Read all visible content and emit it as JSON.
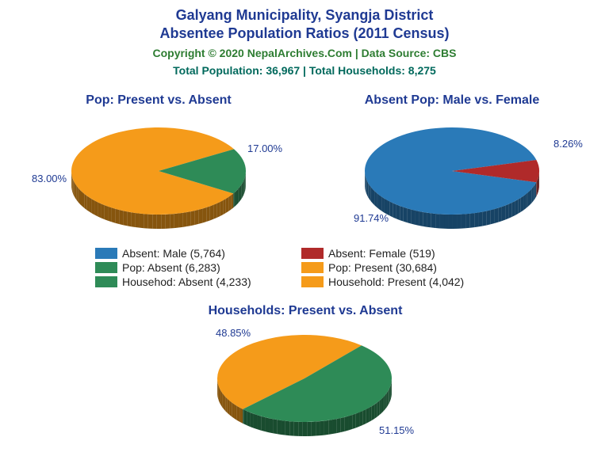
{
  "header": {
    "title_line1": "Galyang Municipality, Syangja District",
    "title_line2": "Absentee Population Ratios (2011 Census)",
    "copyright": "Copyright © 2020 NepalArchives.Com | Data Source: CBS",
    "totals": "Total Population: 36,967 | Total Households: 8,275"
  },
  "colors": {
    "title": "#1f3a93",
    "copyright": "#2e7d32",
    "totals": "#00695c",
    "label": "#1f3a93",
    "blue": "#2a7ab8",
    "blue_dark": "#0d2b57",
    "red": "#b02a2a",
    "red_dark": "#6e1515",
    "green": "#2e8b57",
    "green_dark": "#165934",
    "orange": "#f59b1a",
    "orange_dark": "#b86c0a"
  },
  "chart1": {
    "title": "Pop: Present vs. Absent",
    "type": "pie3d",
    "slices": [
      {
        "label": "Pop: Present",
        "value": 30684,
        "pct": "83.00%",
        "color": "#f59b1a"
      },
      {
        "label": "Pop: Absent",
        "value": 6283,
        "pct": "17.00%",
        "color": "#2e8b57"
      }
    ]
  },
  "chart2": {
    "title": "Absent Pop: Male vs. Female",
    "type": "pie3d",
    "slices": [
      {
        "label": "Absent: Male",
        "value": 5764,
        "pct": "91.74%",
        "color": "#2a7ab8"
      },
      {
        "label": "Absent: Female",
        "value": 519,
        "pct": "8.26%",
        "color": "#b02a2a"
      }
    ]
  },
  "chart3": {
    "title": "Households: Present vs. Absent",
    "type": "pie3d",
    "slices": [
      {
        "label": "Household: Present",
        "value": 4042,
        "pct": "48.85%",
        "color": "#f59b1a"
      },
      {
        "label": "Househod: Absent",
        "value": 4233,
        "pct": "51.15%",
        "color": "#2e8b57"
      }
    ]
  },
  "legend": {
    "items": [
      {
        "color": "#2a7ab8",
        "text": "Absent: Male (5,764)"
      },
      {
        "color": "#b02a2a",
        "text": "Absent: Female (519)"
      },
      {
        "color": "#2e8b57",
        "text": "Pop: Absent (6,283)"
      },
      {
        "color": "#f59b1a",
        "text": "Pop: Present (30,684)"
      },
      {
        "color": "#2e8b57",
        "text": "Househod: Absent (4,233)"
      },
      {
        "color": "#f59b1a",
        "text": "Household: Present (4,042)"
      }
    ]
  },
  "layout": {
    "pie_rx": 110,
    "pie_ry": 55,
    "pie_depth": 18
  }
}
